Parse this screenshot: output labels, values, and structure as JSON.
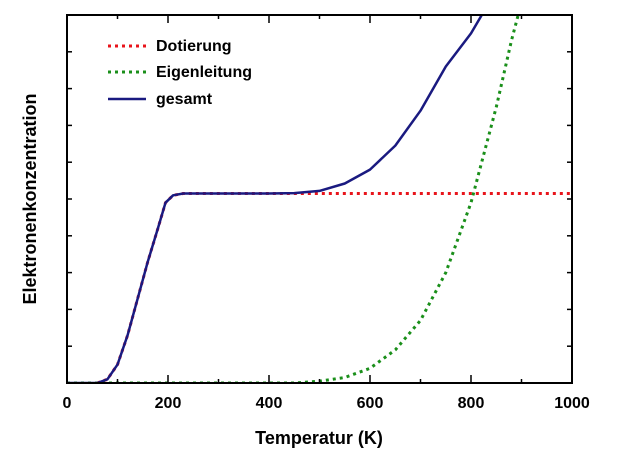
{
  "chart_data": {
    "type": "line",
    "title": "",
    "xlabel": "Temperatur (K)",
    "ylabel": "Elektronenkonzentration",
    "xlim": [
      0,
      1000
    ],
    "ylim": [
      0,
      10
    ],
    "xticks": [
      0,
      200,
      400,
      600,
      800,
      1000
    ],
    "yticks_labeled": false,
    "grid": false,
    "legend_position": "top-left",
    "series": [
      {
        "name": "Dotierung",
        "color": "#e8141b",
        "style": "dotted",
        "x": [
          60,
          80,
          100,
          120,
          140,
          160,
          180,
          195,
          210,
          230,
          260,
          300,
          400,
          500,
          600,
          700,
          800,
          900,
          1000
        ],
        "y": [
          0.0,
          0.1,
          0.5,
          1.3,
          2.3,
          3.3,
          4.2,
          4.9,
          5.1,
          5.15,
          5.15,
          5.15,
          5.15,
          5.15,
          5.15,
          5.15,
          5.15,
          5.15,
          5.15
        ]
      },
      {
        "name": "Eigenleitung",
        "color": "#1a8f1a",
        "style": "dotted",
        "x": [
          0,
          450,
          500,
          550,
          600,
          650,
          700,
          750,
          800,
          850,
          880,
          905
        ],
        "y": [
          0,
          0,
          0.05,
          0.15,
          0.4,
          0.9,
          1.7,
          3.0,
          4.9,
          7.5,
          9.3,
          10.6
        ]
      },
      {
        "name": "gesamt",
        "color": "#1a1a80",
        "style": "solid",
        "x": [
          0,
          50,
          60,
          80,
          100,
          120,
          140,
          160,
          180,
          195,
          210,
          230,
          260,
          300,
          400,
          450,
          500,
          550,
          600,
          650,
          700,
          750,
          800,
          830,
          845
        ],
        "y": [
          0.0,
          0.0,
          0.0,
          0.1,
          0.5,
          1.3,
          2.3,
          3.3,
          4.2,
          4.9,
          5.1,
          5.15,
          5.15,
          5.15,
          5.15,
          5.16,
          5.22,
          5.42,
          5.8,
          6.45,
          7.4,
          8.6,
          9.5,
          10.2,
          10.6
        ]
      }
    ]
  }
}
